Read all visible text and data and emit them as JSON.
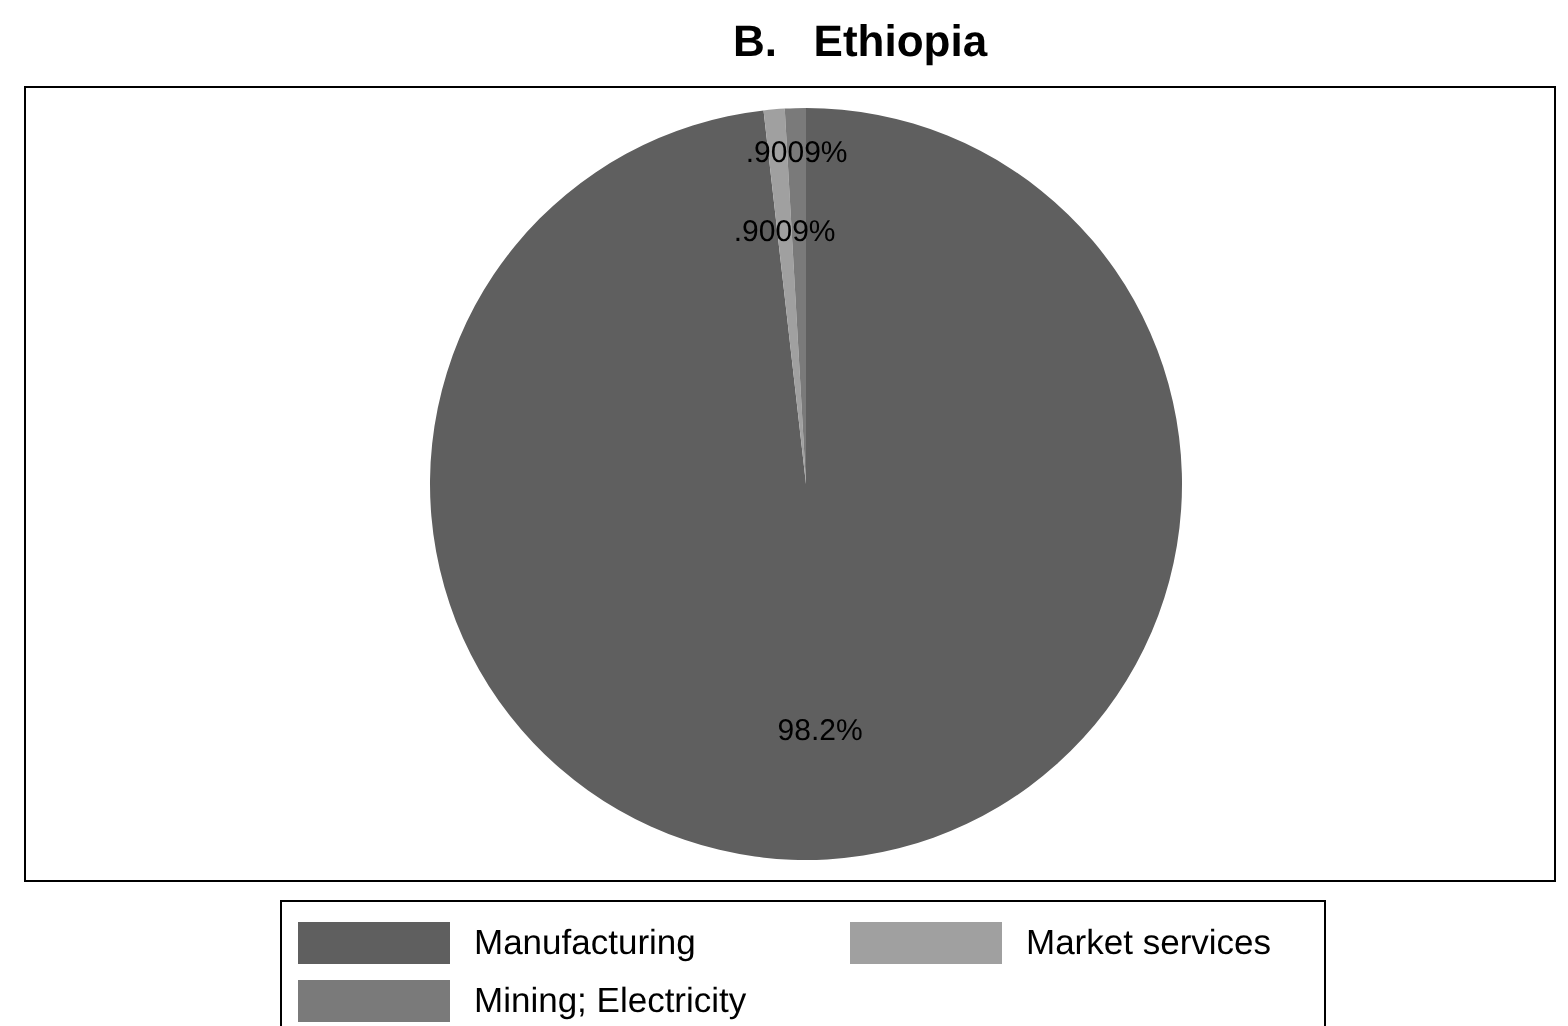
{
  "chart_data": {
    "type": "pie",
    "title": "B.   Ethiopia",
    "categories": [
      "Manufacturing",
      "Market services",
      "Mining; Electricity"
    ],
    "values": [
      98.2,
      0.9009,
      0.9009
    ],
    "colors": [
      "#5f5f5f",
      "#a0a0a0",
      "#7a7a7a"
    ],
    "value_labels": [
      "98.2%",
      ".9009%",
      ".9009%"
    ],
    "legend": "bottom"
  }
}
